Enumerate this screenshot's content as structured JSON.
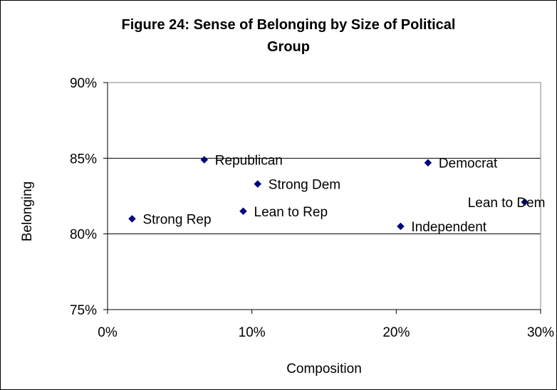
{
  "chart_data": {
    "type": "scatter",
    "title_lines": [
      "Figure 24: Sense of Belonging by Size of Political",
      "Group"
    ],
    "xlabel": "Composition",
    "ylabel": "Belonging",
    "xlim": [
      0,
      0.3
    ],
    "ylim": [
      0.75,
      0.9
    ],
    "x_ticks": [
      0,
      0.1,
      0.2,
      0.3
    ],
    "x_tick_labels": [
      "0%",
      "10%",
      "20%",
      "30%"
    ],
    "y_ticks": [
      0.75,
      0.8,
      0.85,
      0.9
    ],
    "y_tick_labels": [
      "75%",
      "80%",
      "85%",
      "90%"
    ],
    "grid": "horizontal",
    "marker_color": "#000080",
    "points": [
      {
        "label": "Strong Rep",
        "x": 0.017,
        "y": 0.81
      },
      {
        "label": "Republican",
        "x": 0.067,
        "y": 0.849
      },
      {
        "label": "Lean to Rep",
        "x": 0.094,
        "y": 0.815
      },
      {
        "label": "Strong Dem",
        "x": 0.104,
        "y": 0.833
      },
      {
        "label": "Independent",
        "x": 0.203,
        "y": 0.805
      },
      {
        "label": "Democrat",
        "x": 0.222,
        "y": 0.847
      },
      {
        "label": "Lean to Dem",
        "x": 0.289,
        "y": 0.821
      }
    ]
  }
}
